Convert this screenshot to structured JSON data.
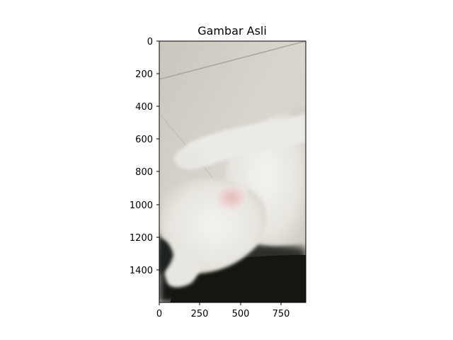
{
  "figure": {
    "title": "Gambar Asli",
    "image_description": "white cat lying on floor, photographed from above",
    "x_ticks": [
      "0",
      "250",
      "500",
      "750"
    ],
    "y_ticks": [
      "0",
      "200",
      "400",
      "600",
      "800",
      "1000",
      "1200",
      "1400"
    ]
  },
  "chart_data": {
    "type": "image",
    "title": "Gambar Asli",
    "xlim": [
      0,
      900
    ],
    "ylim": [
      1600,
      0
    ],
    "x_ticks": [
      0,
      250,
      500,
      750
    ],
    "y_ticks": [
      0,
      200,
      400,
      600,
      800,
      1000,
      1200,
      1400
    ],
    "xlabel": "",
    "ylabel": "",
    "grid": false
  }
}
